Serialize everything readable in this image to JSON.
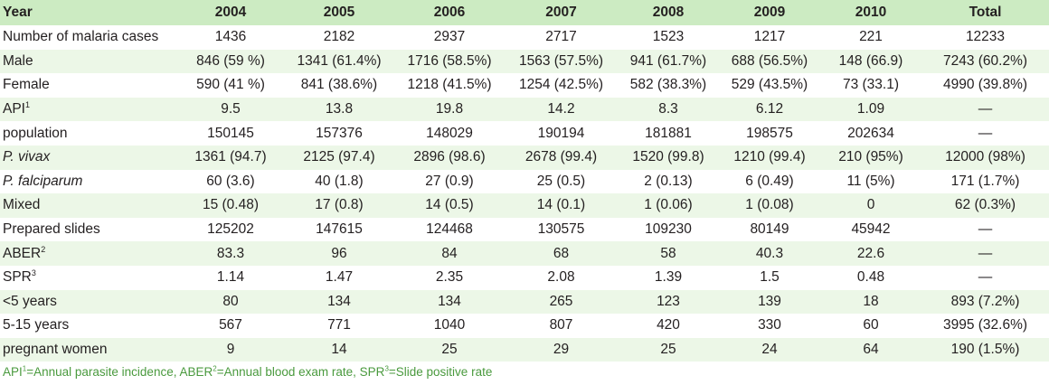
{
  "header": [
    "Year",
    "2004",
    "2005",
    "2006",
    "2007",
    "2008",
    "2009",
    "2010",
    "Total"
  ],
  "rows": [
    {
      "label": "Number of malaria cases",
      "sup": "",
      "italic": false,
      "cells": [
        "1436",
        "2182",
        "2937",
        "2717",
        "1523",
        "1217",
        "221",
        "12233"
      ]
    },
    {
      "label": "Male",
      "sup": "",
      "italic": false,
      "cells": [
        "846 (59 %)",
        "1341 (61.4%)",
        "1716 (58.5%)",
        "1563 (57.5%)",
        "941 (61.7%)",
        "688 (56.5%)",
        "148 (66.9)",
        "7243 (60.2%)"
      ]
    },
    {
      "label": "Female",
      "sup": "",
      "italic": false,
      "cells": [
        "590 (41 %)",
        "841 (38.6%)",
        "1218 (41.5%)",
        "1254 (42.5%)",
        "582 (38.3%)",
        "529 (43.5%)",
        "73 (33.1)",
        "4990 (39.8%)"
      ]
    },
    {
      "label": "API",
      "sup": "1",
      "italic": false,
      "cells": [
        "9.5",
        "13.8",
        "19.8",
        "14.2",
        "8.3",
        "6.12",
        "1.09",
        "—"
      ]
    },
    {
      "label": "population",
      "sup": "",
      "italic": false,
      "cells": [
        "150145",
        "157376",
        "148029",
        "190194",
        "181881",
        "198575",
        "202634",
        "—"
      ]
    },
    {
      "label": "P. vivax",
      "sup": "",
      "italic": true,
      "cells": [
        "1361 (94.7)",
        "2125 (97.4)",
        "2896 (98.6)",
        "2678 (99.4)",
        "1520 (99.8)",
        "1210 (99.4)",
        "210 (95%)",
        "12000 (98%)"
      ]
    },
    {
      "label": "P. falciparum",
      "sup": "",
      "italic": true,
      "cells": [
        "60 (3.6)",
        "40 (1.8)",
        "27 (0.9)",
        "25 (0.5)",
        "2 (0.13)",
        "6 (0.49)",
        "11 (5%)",
        "171 (1.7%)"
      ]
    },
    {
      "label": "Mixed",
      "sup": "",
      "italic": false,
      "cells": [
        "15 (0.48)",
        "17 (0.8)",
        "14 (0.5)",
        "14 (0.1)",
        "1 (0.06)",
        "1 (0.08)",
        "0",
        "62 (0.3%)"
      ]
    },
    {
      "label": "Prepared slides",
      "sup": "",
      "italic": false,
      "cells": [
        "125202",
        "147615",
        "124468",
        "130575",
        "109230",
        "80149",
        "45942",
        "—"
      ]
    },
    {
      "label": "ABER",
      "sup": "2",
      "italic": false,
      "cells": [
        "83.3",
        "96",
        "84",
        "68",
        "58",
        "40.3",
        "22.6",
        "—"
      ]
    },
    {
      "label": "SPR",
      "sup": "3",
      "italic": false,
      "cells": [
        "1.14",
        "1.47",
        "2.35",
        "2.08",
        "1.39",
        "1.5",
        "0.48",
        "—"
      ]
    },
    {
      "label": "<5 years",
      "sup": "",
      "italic": false,
      "cells": [
        "80",
        "134",
        "134",
        "265",
        "123",
        "139",
        "18",
        "893 (7.2%)"
      ]
    },
    {
      "label": "5-15 years",
      "sup": "",
      "italic": false,
      "cells": [
        "567",
        "771",
        "1040",
        "807",
        "420",
        "330",
        "60",
        "3995 (32.6%)"
      ]
    },
    {
      "label": "pregnant women",
      "sup": "",
      "italic": false,
      "cells": [
        "9",
        "14",
        "25",
        "29",
        "25",
        "24",
        "64",
        "190 (1.5%)"
      ]
    }
  ],
  "footnote": {
    "parts": [
      {
        "text": "API",
        "sup": "1"
      },
      {
        "text": "=Annual parasite incidence, ABER",
        "sup": "2"
      },
      {
        "text": "=Annual blood exam rate, SPR",
        "sup": "3"
      },
      {
        "text": "=Slide positive rate",
        "sup": ""
      }
    ]
  },
  "colors": {
    "header_bg": "#ccebc2",
    "stripe_bg": "#ecf7e7",
    "footnote_text": "#4a9a3e"
  }
}
